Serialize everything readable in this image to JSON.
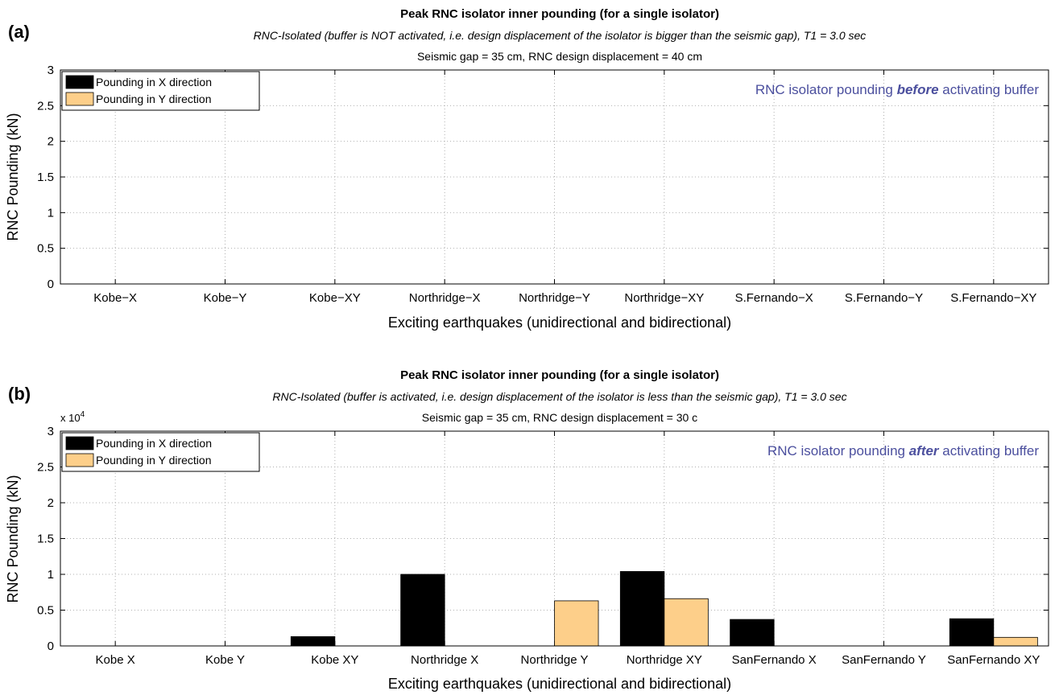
{
  "chart_data": [
    {
      "type": "bar",
      "panel_label": "(a)",
      "title": "Peak RNC isolator inner pounding (for a single isolator)",
      "subtitle": "RNC-Isolated (buffer is NOT activated, i.e. design displacement of the isolator is bigger than the seismic gap), T1 = 3.0 sec",
      "subtitle2": "Seismic gap = 35 cm, RNC design displacement = 40 cm",
      "xlabel": "Exciting earthquakes (unidirectional and bidirectional)",
      "ylabel": "RNC Pounding (kN)",
      "ylim": [
        0,
        3
      ],
      "yticks": [
        0,
        0.5,
        1,
        1.5,
        2,
        2.5,
        3
      ],
      "ytick_labels": [
        "0",
        "0.5",
        "1",
        "1.5",
        "2",
        "2.5",
        "3"
      ],
      "y_multiplier": "",
      "categories": [
        "Kobe−X",
        "Kobe−Y",
        "Kobe−XY",
        "Northridge−X",
        "Northridge−Y",
        "Northridge−XY",
        "S.Fernando−X",
        "S.Fernando−Y",
        "S.Fernando−XY"
      ],
      "series": [
        {
          "name": "Pounding in X direction",
          "color": "#000000",
          "values": [
            0,
            0,
            0,
            0,
            0,
            0,
            0,
            0,
            0
          ]
        },
        {
          "name": "Pounding in Y direction",
          "color": "#fdcf8a",
          "values": [
            0,
            0,
            0,
            0,
            0,
            0,
            0,
            0,
            0
          ]
        }
      ],
      "annotation": {
        "before": "RNC isolator pounding ",
        "emph": "before",
        "after": " activating buffer",
        "color": "#4b4f9e"
      },
      "grid": true,
      "legend_position": "top-left"
    },
    {
      "type": "bar",
      "panel_label": "(b)",
      "title": "Peak RNC isolator inner pounding (for a single isolator)",
      "subtitle": "RNC-Isolated (buffer is activated, i.e. design displacement of the isolator is less than the seismic gap), T1 = 3.0 sec",
      "subtitle2": "Seismic gap = 35 cm, RNC design displacement = 30 c",
      "xlabel": "Exciting earthquakes (unidirectional and bidirectional)",
      "ylabel": "RNC Pounding (kN)",
      "ylim": [
        0,
        30000
      ],
      "yticks": [
        0,
        5000,
        10000,
        15000,
        20000,
        25000,
        30000
      ],
      "ytick_labels": [
        "0",
        "0.5",
        "1",
        "1.5",
        "2",
        "2.5",
        "3"
      ],
      "y_multiplier": "x 10",
      "y_multiplier_exp": "4",
      "categories": [
        "Kobe X",
        "Kobe Y",
        "Kobe XY",
        "Northridge X",
        "Northridge Y",
        "Northridge XY",
        "SanFernando X",
        "SanFernando Y",
        "SanFernando XY"
      ],
      "series": [
        {
          "name": "Pounding in X direction",
          "color": "#000000",
          "values": [
            0,
            0,
            1300,
            10000,
            0,
            10400,
            3700,
            0,
            3800
          ]
        },
        {
          "name": "Pounding in Y direction",
          "color": "#fdcf8a",
          "values": [
            0,
            0,
            0,
            0,
            6300,
            6600,
            0,
            0,
            1200
          ]
        }
      ],
      "annotation": {
        "before": "RNC isolator pounding ",
        "emph": "after",
        "after": " activating buffer",
        "color": "#4b4f9e"
      },
      "grid": true,
      "legend_position": "top-left"
    }
  ]
}
